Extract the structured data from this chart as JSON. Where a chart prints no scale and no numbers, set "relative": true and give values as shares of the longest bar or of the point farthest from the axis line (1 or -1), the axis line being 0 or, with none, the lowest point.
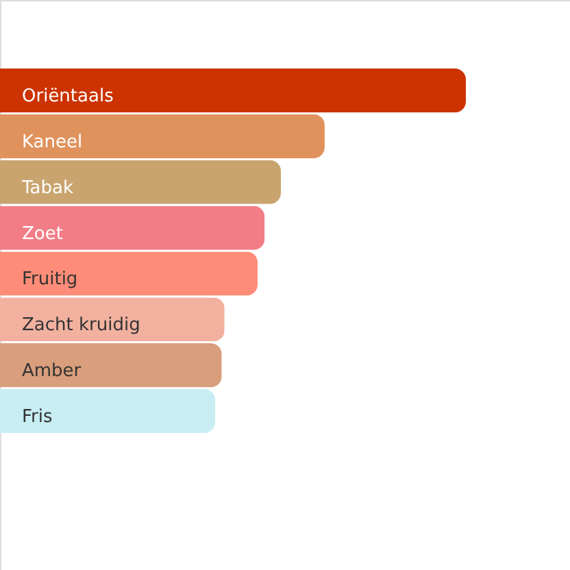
{
  "chart_data": {
    "type": "bar",
    "orientation": "horizontal",
    "relative": true,
    "categories": [
      "Oriëntaals",
      "Kaneel",
      "Tabak",
      "Zoet",
      "Fruitig",
      "Zacht kruidig",
      "Amber",
      "Fris"
    ],
    "values": [
      1,
      0.697,
      0.603,
      0.568,
      0.553,
      0.482,
      0.476,
      0.462
    ],
    "colors": [
      "#cc3300",
      "#e0925c",
      "#c9a46e",
      "#f27d86",
      "#ff8c78",
      "#f2b19f",
      "#d99e7c",
      "#c8eef3"
    ]
  }
}
